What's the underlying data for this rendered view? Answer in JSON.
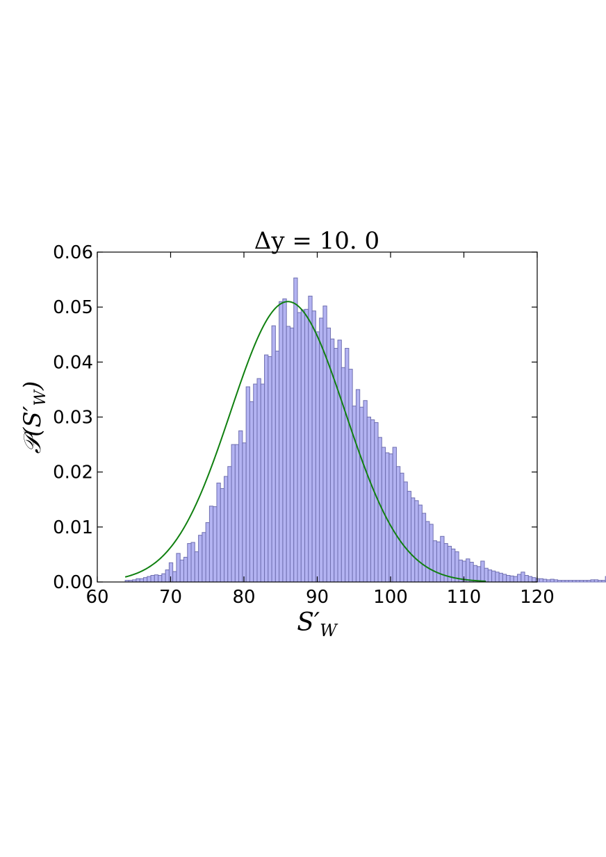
{
  "chart_data": {
    "type": "bar",
    "title": "Δy = 10. 0",
    "xlabel": "S′_W",
    "ylabel": "𝒫(S′_W)",
    "xlim": [
      60,
      120
    ],
    "ylim": [
      0,
      0.06
    ],
    "xticks": [
      60,
      70,
      80,
      90,
      100,
      110,
      120
    ],
    "yticks": [
      0.0,
      0.01,
      0.02,
      0.03,
      0.04,
      0.05,
      0.06
    ],
    "xtick_labels": [
      "60",
      "70",
      "80",
      "90",
      "100",
      "110",
      "120"
    ],
    "ytick_labels": [
      "0.00",
      "0.01",
      "0.02",
      "0.03",
      "0.04",
      "0.05",
      "0.06"
    ],
    "grid": false,
    "bar_color": "#b3b3f2",
    "bar_edge_color": "#6f6fb0",
    "curve_color": "#108010",
    "histogram": {
      "bin_start": 63.8,
      "bin_width": 0.5,
      "values": [
        0.0003,
        0.0003,
        0.0004,
        0.0006,
        0.0006,
        0.0008,
        0.001,
        0.0012,
        0.0013,
        0.0012,
        0.0015,
        0.0022,
        0.0035,
        0.0019,
        0.0052,
        0.004,
        0.0045,
        0.007,
        0.0072,
        0.0055,
        0.0085,
        0.009,
        0.0108,
        0.0138,
        0.0137,
        0.018,
        0.017,
        0.0192,
        0.021,
        0.025,
        0.025,
        0.0275,
        0.0253,
        0.0355,
        0.0328,
        0.036,
        0.037,
        0.036,
        0.0413,
        0.041,
        0.0466,
        0.042,
        0.051,
        0.0515,
        0.0465,
        0.0462,
        0.0553,
        0.049,
        0.0495,
        0.0496,
        0.052,
        0.0493,
        0.0455,
        0.048,
        0.0502,
        0.0462,
        0.0442,
        0.0425,
        0.044,
        0.039,
        0.0425,
        0.0387,
        0.032,
        0.035,
        0.0318,
        0.033,
        0.03,
        0.0295,
        0.029,
        0.0263,
        0.0245,
        0.0235,
        0.0233,
        0.0245,
        0.021,
        0.0198,
        0.0182,
        0.0165,
        0.0153,
        0.0148,
        0.014,
        0.0125,
        0.011,
        0.0105,
        0.0075,
        0.0073,
        0.0083,
        0.007,
        0.0065,
        0.006,
        0.0055,
        0.004,
        0.0038,
        0.0042,
        0.0036,
        0.003,
        0.0028,
        0.0038,
        0.0025,
        0.0022,
        0.002,
        0.0018,
        0.0016,
        0.0014,
        0.0012,
        0.0011,
        0.001,
        0.0014,
        0.0018,
        0.0012,
        0.001,
        0.0008,
        0.0006,
        0.0006,
        0.0005,
        0.0004,
        0.0005,
        0.0004,
        0.0003,
        0.0003,
        0.0003,
        0.0003,
        0.0003,
        0.0003,
        0.0003,
        0.0003,
        0.0003,
        0.0004,
        0.0004,
        0.0003,
        0.0003,
        0.001,
        0.001
      ]
    },
    "fit": {
      "type": "gaussian",
      "mean": 86.0,
      "std": 7.82,
      "peak": 0.051,
      "x_range": [
        63.8,
        113.0
      ]
    }
  }
}
